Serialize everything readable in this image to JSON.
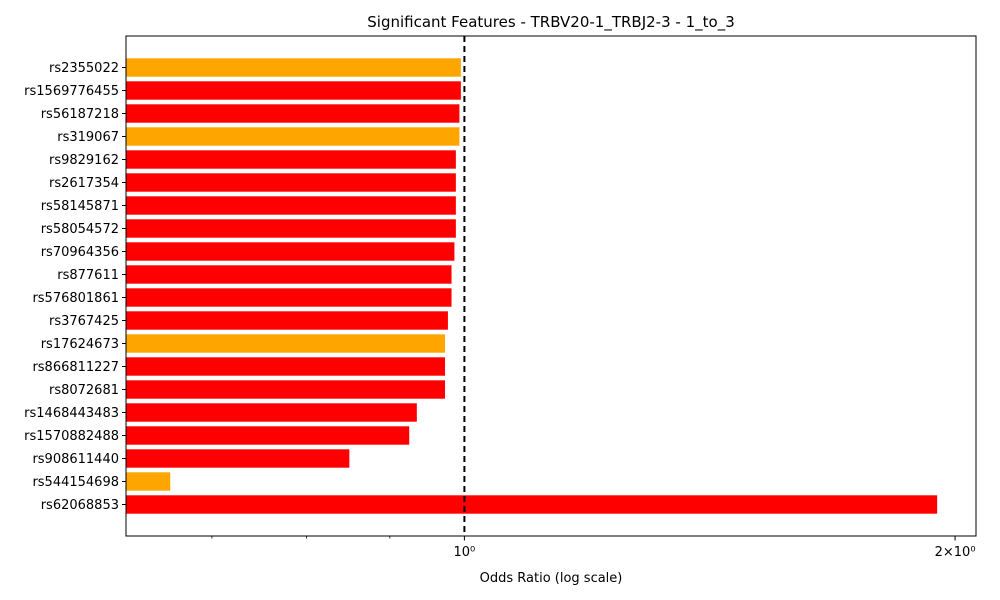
{
  "chart_data": {
    "type": "bar",
    "orientation": "horizontal",
    "title": "Significant Features - TRBV20-1_TRBJ2-3 - 1_to_3",
    "xlabel": "Odds Ratio (log scale)",
    "ylabel": "",
    "xscale": "log",
    "xlim": [
      0.62,
      2.06
    ],
    "reference_line": {
      "x": 1.0,
      "style": "dashed",
      "color": "#000000"
    },
    "x_tick_labels": [
      {
        "value": 1.0,
        "label": "10⁰"
      },
      {
        "value": 2.0,
        "label": "2×10⁰"
      }
    ],
    "categories": [
      "rs2355022",
      "rs1569776455",
      "rs56187218",
      "rs319067",
      "rs9829162",
      "rs2617354",
      "rs58145871",
      "rs58054572",
      "rs70964356",
      "rs877611",
      "rs576801861",
      "rs3767425",
      "rs17624673",
      "rs866811227",
      "rs8072681",
      "rs1468443483",
      "rs1570882488",
      "rs908611440",
      "rs544154698",
      "rs62068853"
    ],
    "values": [
      0.995,
      0.995,
      0.993,
      0.993,
      0.988,
      0.988,
      0.988,
      0.988,
      0.986,
      0.982,
      0.982,
      0.977,
      0.973,
      0.973,
      0.973,
      0.935,
      0.925,
      0.85,
      0.66,
      1.95
    ],
    "bar_colors": [
      "#FFA500",
      "#FF0000",
      "#FF0000",
      "#FFA500",
      "#FF0000",
      "#FF0000",
      "#FF0000",
      "#FF0000",
      "#FF0000",
      "#FF0000",
      "#FF0000",
      "#FF0000",
      "#FFA500",
      "#FF0000",
      "#FF0000",
      "#FF0000",
      "#FF0000",
      "#FF0000",
      "#FFA500",
      "#FF0000"
    ],
    "grid": false,
    "legend": "none"
  }
}
